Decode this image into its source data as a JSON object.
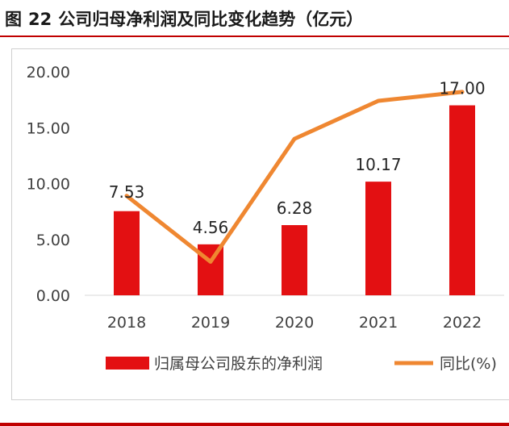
{
  "figure": {
    "label": "图",
    "number": "22",
    "title": "公司归母净利润及同比变化趋势（亿元）"
  },
  "colors": {
    "bar": "#e31012",
    "line": "#ef8731",
    "rule": "#c00000"
  },
  "chart_data": {
    "type": "bar+line",
    "categories": [
      "2018",
      "2019",
      "2020",
      "2021",
      "2022"
    ],
    "series": [
      {
        "name": "归属母公司股东的净利润",
        "kind": "bar",
        "axis": "left",
        "values": [
          7.53,
          4.56,
          6.28,
          10.17,
          17.0
        ],
        "labels": [
          "7.53",
          "4.56",
          "6.28",
          "10.17",
          "17.00"
        ]
      },
      {
        "name": "同比(%)",
        "kind": "line",
        "axis": "secondary (unlabeled)",
        "values": [
          8.9,
          3.0,
          14.0,
          17.4,
          18.2
        ]
      }
    ],
    "yticks": [
      "0.00",
      "5.00",
      "10.00",
      "15.00",
      "20.00"
    ],
    "ylim": [
      0,
      20
    ],
    "grid": false,
    "legend": "bottom"
  }
}
